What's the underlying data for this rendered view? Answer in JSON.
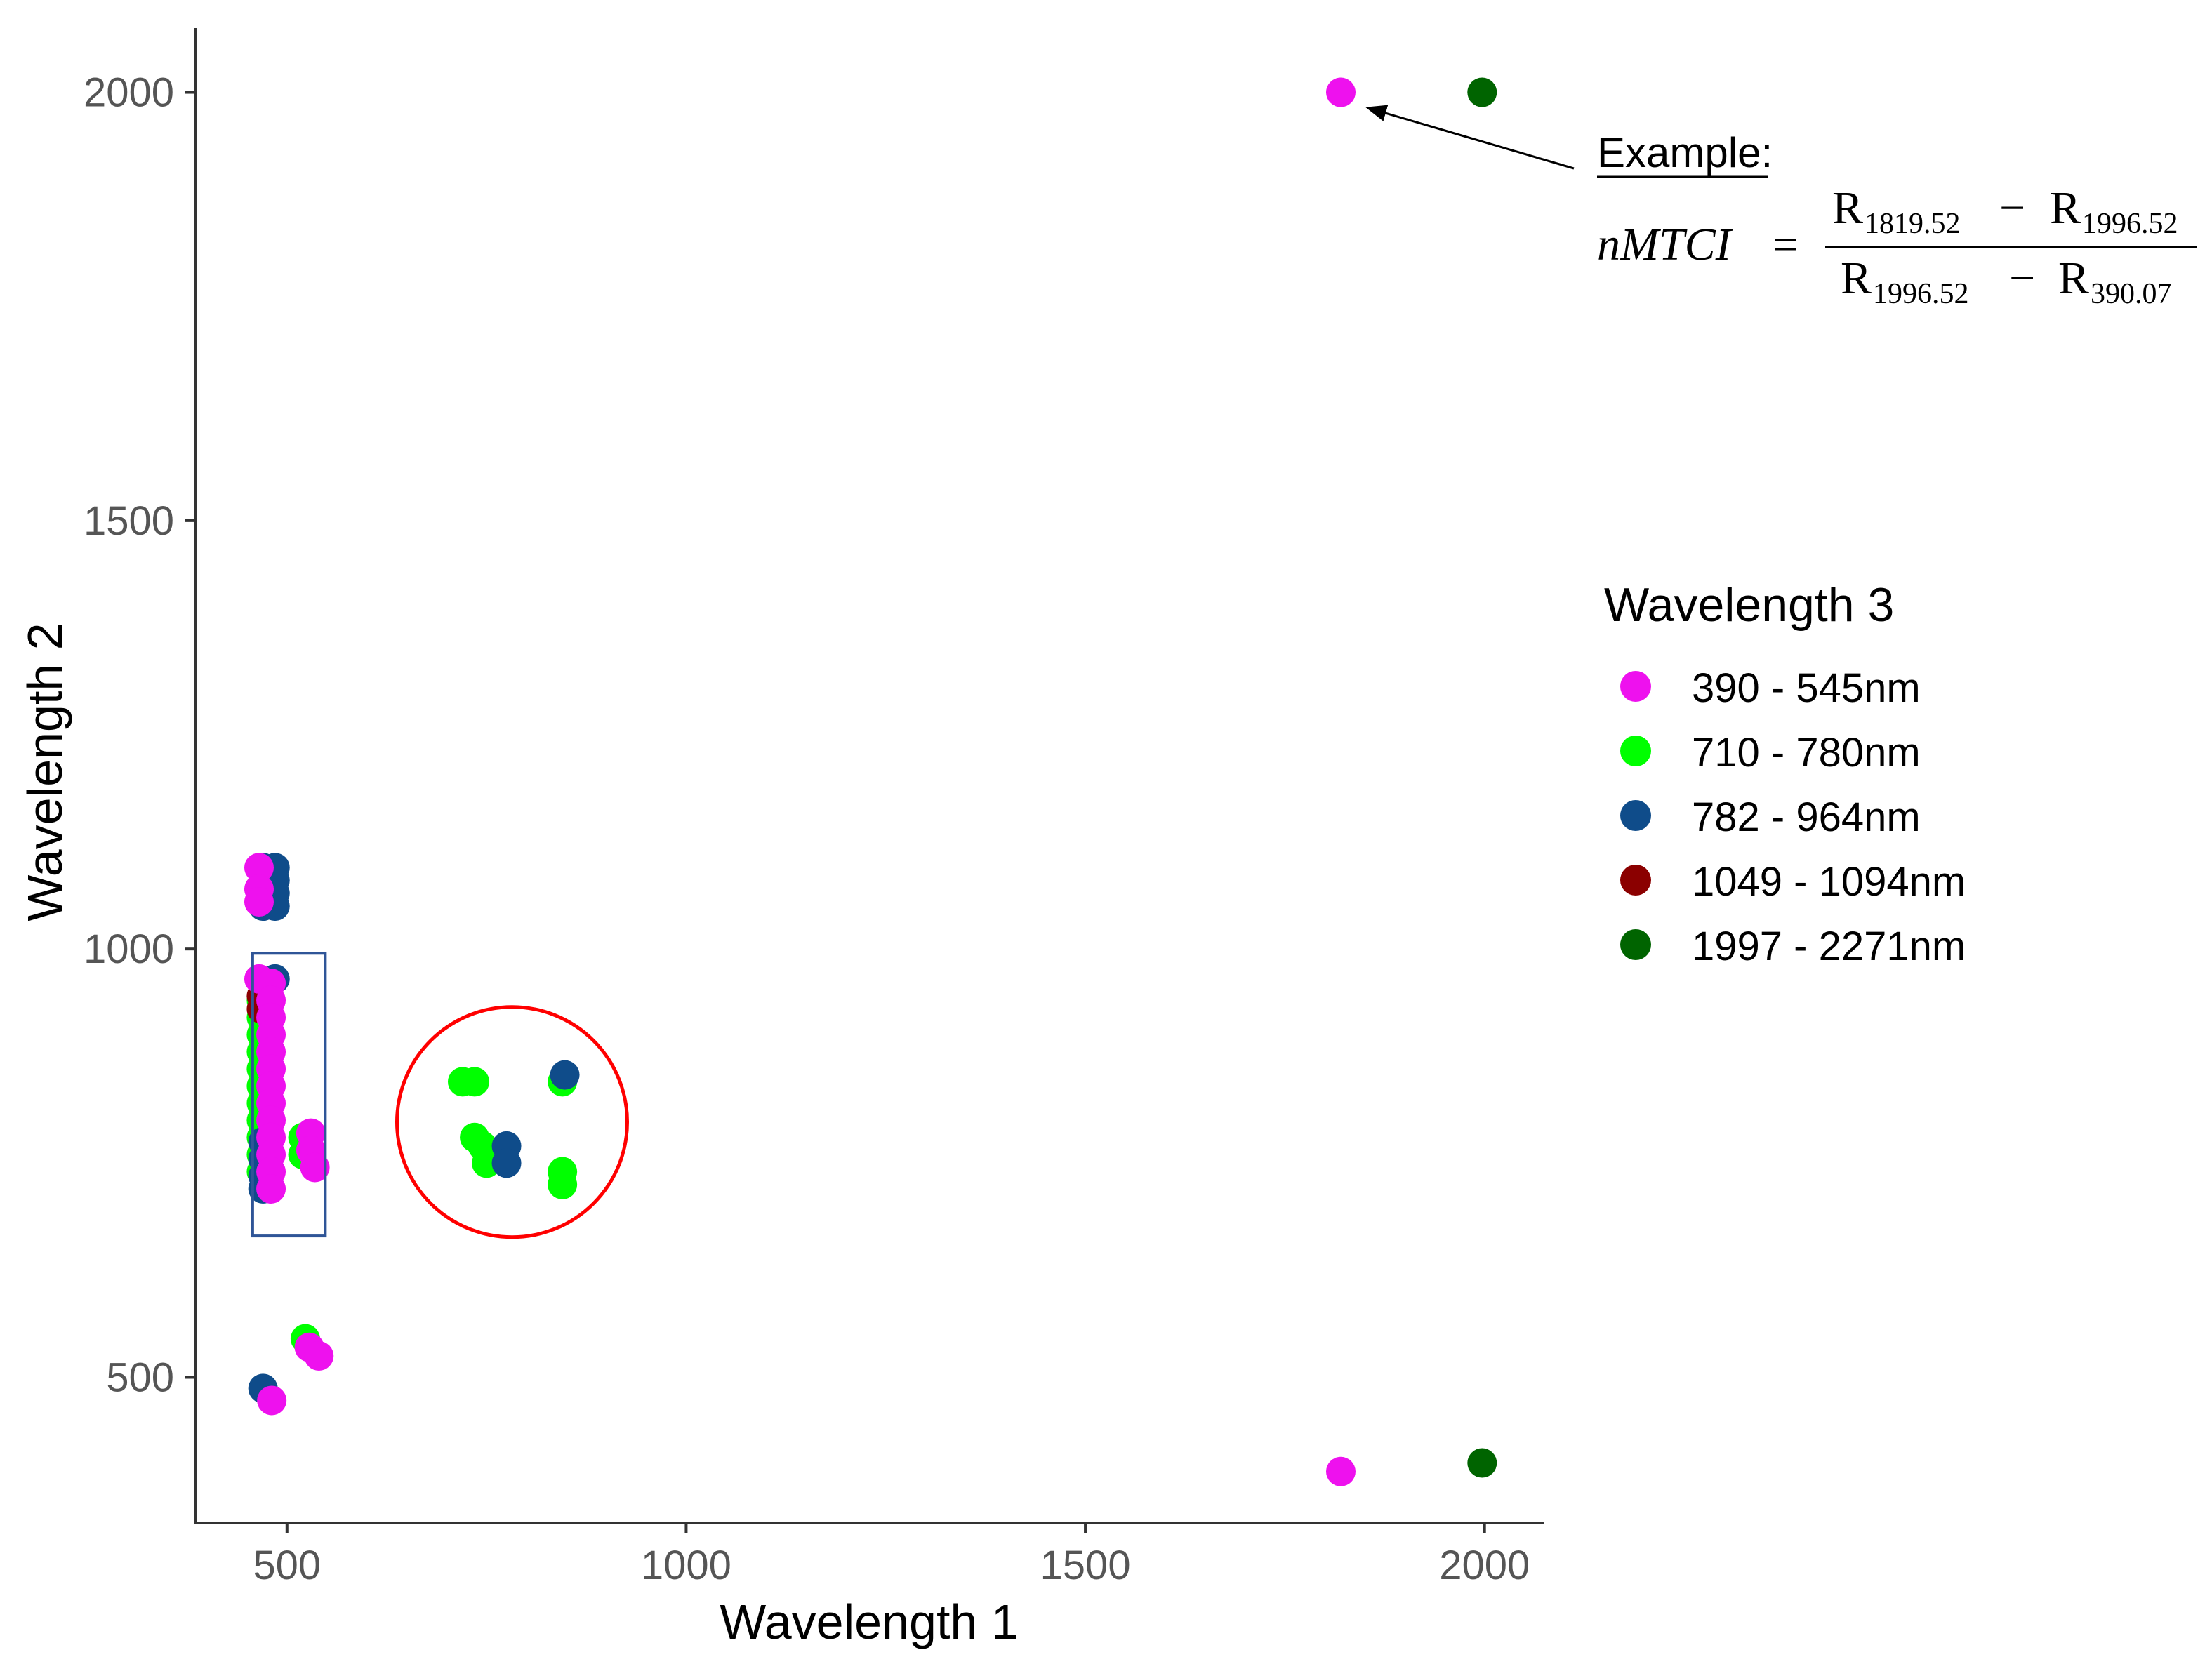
{
  "chart_data": {
    "type": "scatter",
    "xlabel": "Wavelength 1",
    "ylabel": "Wavelength 2",
    "xlim": [
      385,
      2075
    ],
    "ylim": [
      330,
      2075
    ],
    "x_ticks": [
      500,
      1000,
      1500,
      2000
    ],
    "y_ticks": [
      500,
      1000,
      1500,
      2000
    ],
    "grid": false,
    "legend": {
      "title": "Wavelength 3",
      "position": "right",
      "entries": [
        {
          "label": "390 - 545nm",
          "color": "#ee11ee"
        },
        {
          "label": "710 - 780nm",
          "color": "#00ff00"
        },
        {
          "label": "782 - 964nm",
          "color": "#0f4c8a"
        },
        {
          "label": "1049 - 1094nm",
          "color": "#8b0000"
        },
        {
          "label": "1997 - 2271nm",
          "color": "#006400"
        }
      ]
    },
    "series": [
      {
        "name": "710 - 780nm",
        "points": [
          [
            468,
            940
          ],
          [
            468,
            920
          ],
          [
            468,
            900
          ],
          [
            468,
            880
          ],
          [
            468,
            860
          ],
          [
            468,
            840
          ],
          [
            468,
            820
          ],
          [
            468,
            800
          ],
          [
            468,
            780
          ],
          [
            468,
            760
          ],
          [
            468,
            740
          ],
          [
            520,
            780
          ],
          [
            520,
            760
          ],
          [
            523,
            545
          ],
          [
            720,
            845
          ],
          [
            735,
            845
          ],
          [
            735,
            780
          ],
          [
            745,
            770
          ],
          [
            755,
            760
          ],
          [
            750,
            750
          ],
          [
            845,
            740
          ],
          [
            845,
            725
          ],
          [
            845,
            845
          ]
        ]
      },
      {
        "name": "782 - 964nm",
        "points": [
          [
            470,
            1095
          ],
          [
            470,
            1080
          ],
          [
            470,
            1065
          ],
          [
            470,
            1050
          ],
          [
            485,
            1095
          ],
          [
            485,
            1080
          ],
          [
            485,
            1065
          ],
          [
            485,
            1050
          ],
          [
            470,
            960
          ],
          [
            485,
            965
          ],
          [
            470,
            775
          ],
          [
            470,
            755
          ],
          [
            470,
            735
          ],
          [
            470,
            720
          ],
          [
            470,
            487
          ],
          [
            775,
            770
          ],
          [
            775,
            750
          ],
          [
            848,
            853
          ]
        ]
      },
      {
        "name": "1049 - 1094nm",
        "points": [
          [
            468,
            945
          ],
          [
            468,
            930
          ]
        ]
      },
      {
        "name": "390 - 545nm",
        "points": [
          [
            465,
            1095
          ],
          [
            465,
            1070
          ],
          [
            465,
            1055
          ],
          [
            465,
            965
          ],
          [
            480,
            960
          ],
          [
            480,
            940
          ],
          [
            480,
            920
          ],
          [
            480,
            900
          ],
          [
            480,
            880
          ],
          [
            480,
            860
          ],
          [
            480,
            840
          ],
          [
            480,
            820
          ],
          [
            480,
            800
          ],
          [
            480,
            780
          ],
          [
            480,
            760
          ],
          [
            480,
            740
          ],
          [
            480,
            720
          ],
          [
            530,
            785
          ],
          [
            530,
            765
          ],
          [
            535,
            745
          ],
          [
            528,
            535
          ],
          [
            540,
            525
          ],
          [
            481,
            473
          ],
          [
            1820,
            2000
          ],
          [
            1820,
            390
          ]
        ]
      },
      {
        "name": "1997 - 2271nm",
        "points": [
          [
            1997,
            2000
          ],
          [
            1997,
            400
          ]
        ]
      }
    ],
    "annotations": {
      "highlight_box": {
        "x_range": [
          457,
          548
        ],
        "y_range": [
          665,
          995
        ],
        "color": "#2f5597"
      },
      "highlight_circle": {
        "center": [
          782,
          798
        ],
        "color": "#ff0000"
      },
      "arrow_target": [
        1820,
        2000
      ],
      "example_label": "Example:",
      "formula": {
        "lhs": "nMTCI",
        "equals": "=",
        "numerator": [
          {
            "base": "R",
            "sub": "1819.52"
          },
          {
            "op": "−"
          },
          {
            "base": "R",
            "sub": "1996.52"
          }
        ],
        "denominator": [
          {
            "base": "R",
            "sub": "1996.52"
          },
          {
            "op": "−"
          },
          {
            "base": "R",
            "sub": "390.07"
          }
        ]
      }
    }
  }
}
